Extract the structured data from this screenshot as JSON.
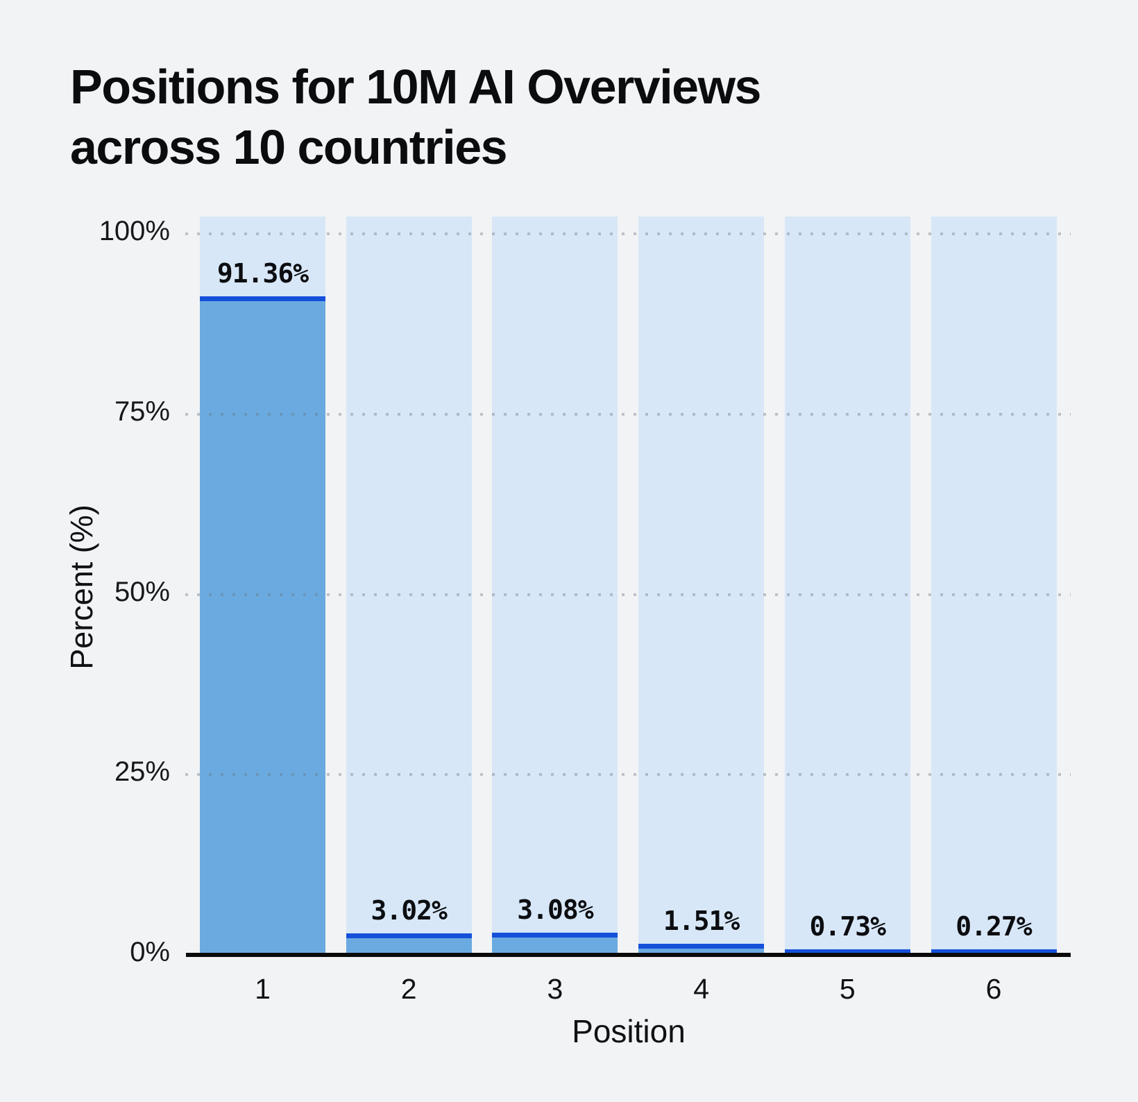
{
  "page": {
    "background": "#f2f3f4"
  },
  "title": {
    "line1": "Positions for 10M AI Overviews",
    "line2": "across 10 countries"
  },
  "chart_data": {
    "type": "bar",
    "title": "Positions for 10M AI Overviews across 10 countries",
    "categories": [
      "1",
      "2",
      "3",
      "4",
      "5",
      "6"
    ],
    "values": [
      91.36,
      3.02,
      3.08,
      1.51,
      0.73,
      0.27
    ],
    "value_labels": [
      "91.36%",
      "3.02%",
      "3.08%",
      "1.51%",
      "0.73%",
      "0.27%"
    ],
    "xlabel": "Position",
    "ylabel": "Percent (%)",
    "ylim": [
      0,
      100
    ],
    "yticks": [
      {
        "value": 0,
        "label": "0%"
      },
      {
        "value": 25,
        "label": "25%"
      },
      {
        "value": 50,
        "label": "50%"
      },
      {
        "value": 75,
        "label": "75%"
      },
      {
        "value": 100,
        "label": "100%"
      }
    ],
    "grid": "horizontal dotted lines at each y tick, none at 0%",
    "legend": "none",
    "layout": {
      "full_height_background_columns": true,
      "bar_top_accent_line": true
    },
    "colors": {
      "page_background": "#f2f3f4",
      "column_background": "#d7e7f7",
      "bar_fill": "#6aaae0",
      "bar_top_line": "#1550da",
      "grid_dot": "#9aa2ac",
      "axis_line": "#0a0a0a",
      "text": "#0c0d10"
    }
  }
}
